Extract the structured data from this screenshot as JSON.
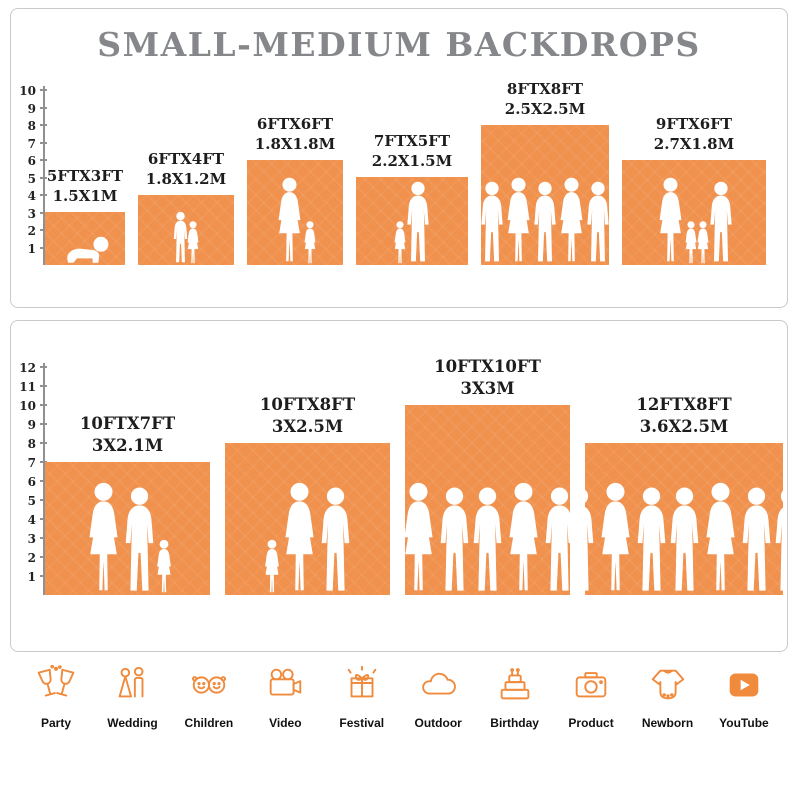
{
  "title": "SMALL-MEDIUM BACKDROPS",
  "colors": {
    "orange": "#F0914D",
    "icon_orange": "#F08A3C",
    "title_gray": "#85878A",
    "label_dark": "#1D1D1D",
    "panel_border": "#C9CACC"
  },
  "panel1": {
    "ruler_ticks": [
      "1",
      "2",
      "3",
      "4",
      "5",
      "6",
      "7",
      "8",
      "9",
      "10"
    ],
    "backdrops": [
      {
        "size_ft": "5FTX3FT",
        "size_m": "1.5X1M",
        "w_ft": 5,
        "h_ft": 3,
        "figures": [
          "baby"
        ]
      },
      {
        "size_ft": "6FTX4FT",
        "size_m": "1.8X1.2M",
        "w_ft": 6,
        "h_ft": 4,
        "figures": [
          "child",
          "child-small"
        ]
      },
      {
        "size_ft": "6FTX6FT",
        "size_m": "1.8X1.8M",
        "w_ft": 6,
        "h_ft": 6,
        "figures": [
          "adult-f",
          "child-small"
        ]
      },
      {
        "size_ft": "7FTX5FT",
        "size_m": "2.2X1.5M",
        "w_ft": 7,
        "h_ft": 5,
        "figures": [
          "child-small",
          "adult"
        ]
      },
      {
        "size_ft": "8FTX8FT",
        "size_m": "2.5X2.5M",
        "w_ft": 8,
        "h_ft": 8,
        "figures": [
          "adult",
          "adult-f",
          "adult",
          "adult-f",
          "adult"
        ]
      },
      {
        "size_ft": "9FTX6FT",
        "size_m": "2.7X1.8M",
        "w_ft": 9,
        "h_ft": 6,
        "figures": [
          "adult-f",
          "child-small",
          "child-small",
          "adult"
        ]
      }
    ]
  },
  "panel2": {
    "ruler_ticks": [
      "1",
      "2",
      "3",
      "4",
      "5",
      "6",
      "7",
      "8",
      "9",
      "10",
      "11",
      "12"
    ],
    "backdrops": [
      {
        "size_ft": "10FTX7FT",
        "size_m": "3X2.1M",
        "w_ft": 10,
        "h_ft": 7,
        "figures": [
          "adult-f",
          "adult",
          "child-small"
        ]
      },
      {
        "size_ft": "10FTX8FT",
        "size_m": "3X2.5M",
        "w_ft": 10,
        "h_ft": 8,
        "figures": [
          "child-small",
          "adult-f",
          "adult"
        ]
      },
      {
        "size_ft": "10FTX10FT",
        "size_m": "3X3M",
        "w_ft": 10,
        "h_ft": 10,
        "figures": [
          "adult-f",
          "adult",
          "adult",
          "adult-f",
          "adult"
        ]
      },
      {
        "size_ft": "12FTX8FT",
        "size_m": "3.6X2.5M",
        "w_ft": 12,
        "h_ft": 8,
        "figures": [
          "adult",
          "adult-f",
          "adult",
          "adult",
          "adult-f",
          "adult",
          "adult"
        ]
      }
    ]
  },
  "categories": [
    {
      "label": "Party",
      "icon": "party-icon"
    },
    {
      "label": "Wedding",
      "icon": "wedding-icon"
    },
    {
      "label": "Children",
      "icon": "children-icon"
    },
    {
      "label": "Video",
      "icon": "video-icon"
    },
    {
      "label": "Festival",
      "icon": "festival-icon"
    },
    {
      "label": "Outdoor",
      "icon": "outdoor-icon"
    },
    {
      "label": "Birthday",
      "icon": "birthday-icon"
    },
    {
      "label": "Product",
      "icon": "product-icon"
    },
    {
      "label": "Newborn",
      "icon": "newborn-icon"
    },
    {
      "label": "YouTube",
      "icon": "youtube-icon"
    }
  ]
}
